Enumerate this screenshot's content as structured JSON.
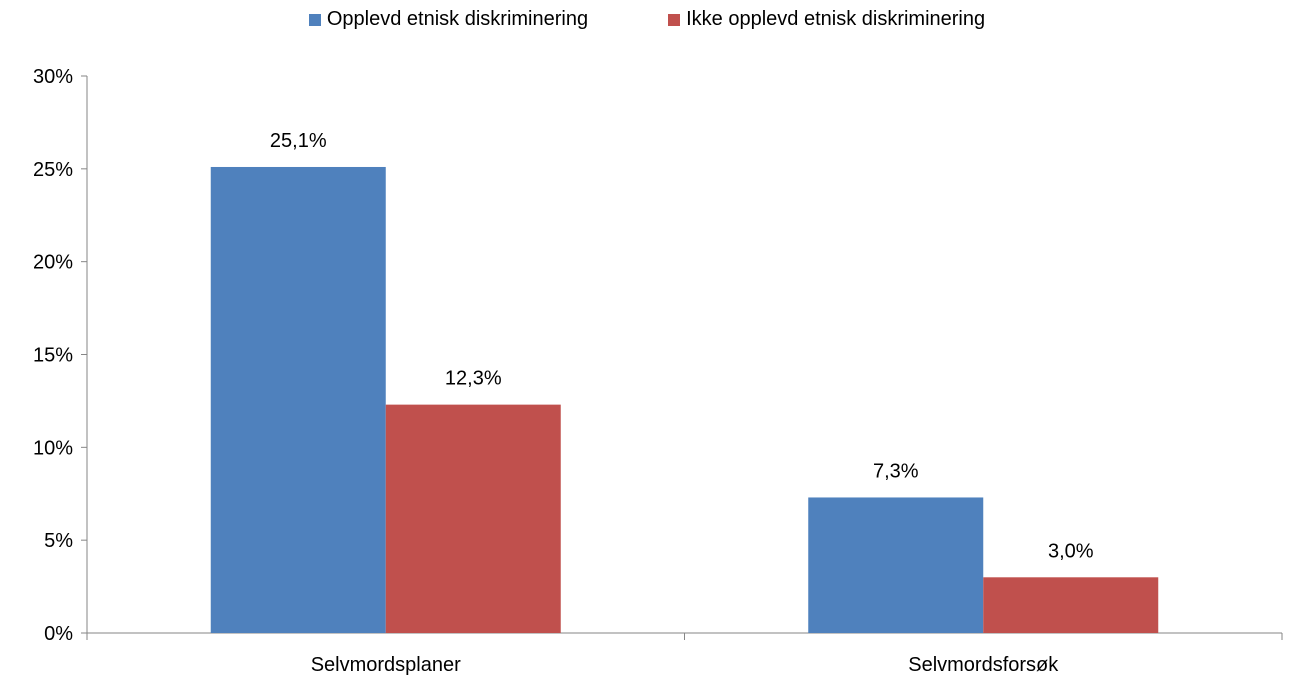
{
  "chart_data": {
    "type": "bar",
    "categories": [
      "Selvmordsplaner",
      "Selvmordsforsøk"
    ],
    "series": [
      {
        "name": "Opplevd etnisk diskriminering",
        "values": [
          25.1,
          7.3
        ],
        "labels": [
          "25,1%",
          "7,3%"
        ],
        "color": "#4F81BD"
      },
      {
        "name": "Ikke opplevd etnisk diskriminering",
        "values": [
          12.3,
          3.0
        ],
        "labels": [
          "12,3%",
          "3,0%"
        ],
        "color": "#C0504D"
      }
    ],
    "ylim": [
      0,
      30
    ],
    "yticks": [
      0,
      5,
      10,
      15,
      20,
      25,
      30
    ],
    "ytick_labels": [
      "0%",
      "5%",
      "10%",
      "15%",
      "20%",
      "25%",
      "30%"
    ],
    "title": "",
    "xlabel": "",
    "ylabel": "",
    "grid": false,
    "legend": "top"
  }
}
